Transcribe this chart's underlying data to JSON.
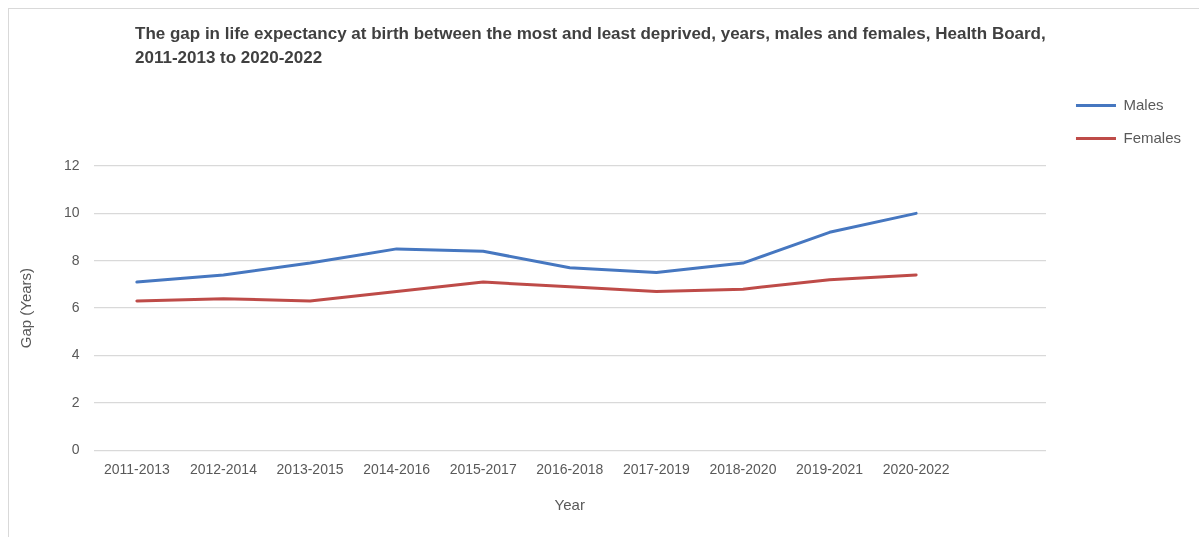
{
  "chart_data": {
    "type": "line",
    "title": "The gap in life expectancy at birth between the most and least deprived, years, males and females, Health Board, 2011-2013 to 2020-2022",
    "xlabel": "Year",
    "ylabel": "Gap (Years)",
    "categories": [
      "2011-2013",
      "2012-2014",
      "2013-2015",
      "2014-2016",
      "2015-2017",
      "2016-2018",
      "2017-2019",
      "2018-2020",
      "2019-2021",
      "2020-2022",
      null
    ],
    "series": [
      {
        "name": "Males",
        "color": "#4677c0",
        "values": [
          7.1,
          7.4,
          7.9,
          8.5,
          8.4,
          7.7,
          7.5,
          7.9,
          9.2,
          10.0,
          null
        ]
      },
      {
        "name": "Females",
        "color": "#be4b48",
        "values": [
          6.3,
          6.4,
          6.3,
          6.7,
          7.1,
          6.9,
          6.7,
          6.8,
          7.2,
          7.4,
          null
        ]
      }
    ],
    "ylim": [
      0,
      12
    ],
    "yticks": [
      0,
      2,
      4,
      6,
      8,
      10,
      12
    ],
    "grid": "y",
    "legend": "top right",
    "marker": "none",
    "line_style": "solid"
  }
}
